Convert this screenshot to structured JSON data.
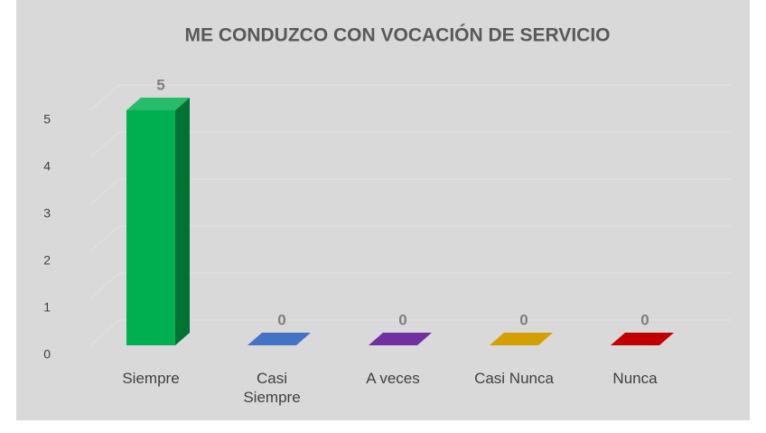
{
  "chart_data": {
    "type": "bar3d",
    "title": "ME CONDUZCO CON VOCACIÓN DE SERVICIO",
    "categories": [
      "Siempre",
      "Casi Siempre",
      "A veces",
      "Casi Nunca",
      "Nunca"
    ],
    "values": [
      5,
      0,
      0,
      0,
      0
    ],
    "colors": [
      "#00b050",
      "#4472c4",
      "#7030a0",
      "#d4a000",
      "#c00000"
    ],
    "ylim": [
      0,
      5
    ],
    "yticks": [
      0,
      1,
      2,
      3,
      4,
      5
    ],
    "grid": true
  }
}
